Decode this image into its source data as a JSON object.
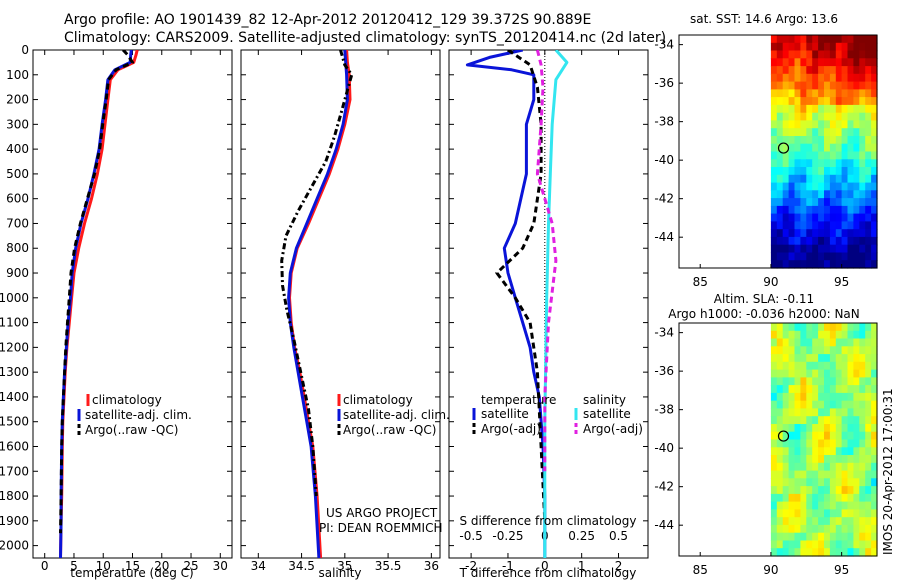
{
  "header": {
    "line1": "Argo profile: AO 1901439_82 12-Apr-2012 20120412_129 39.372S 90.889E",
    "line2": "Climatology: CARS2009. Satellite-adjusted climatology: synTS_20120414.nc (2d later)"
  },
  "credit": {
    "line1": "US ARGO PROJECT",
    "line2": "PI: DEAN ROEMMICH"
  },
  "side_label": "IMOS 20-Apr-2012 17:00:31",
  "colors": {
    "climatology": "#ff1a1a",
    "satellite": "#0a14d8",
    "argo": "#000000",
    "sal_satellite": "#33e6f0",
    "sal_argo": "#e020e0"
  },
  "chart_data": [
    {
      "type": "line",
      "name": "temperature-profile",
      "xlabel": "temperature (deg C)",
      "ylabel": "",
      "xlim": [
        -2,
        32
      ],
      "ylim": [
        2050,
        0
      ],
      "xticks": [
        "0",
        "5",
        "10",
        "15",
        "20",
        "25",
        "30"
      ],
      "xtick_values": [
        0,
        5,
        10,
        15,
        20,
        25,
        30
      ],
      "yticks": [
        "0",
        "100",
        "200",
        "300",
        "400",
        "500",
        "600",
        "700",
        "800",
        "900",
        "1000",
        "1100",
        "1200",
        "1300",
        "1400",
        "1500",
        "1600",
        "1700",
        "1800",
        "1900",
        "2000"
      ],
      "ytick_values": [
        0,
        100,
        200,
        300,
        400,
        500,
        600,
        700,
        800,
        900,
        1000,
        1100,
        1200,
        1300,
        1400,
        1500,
        1600,
        1700,
        1800,
        1900,
        2000
      ],
      "legend": [
        "climatology",
        "satellite-adj. clim.",
        "Argo(..raw -QC)"
      ],
      "series": [
        {
          "name": "climatology",
          "color": "climatology",
          "dash": "",
          "x": [
            15.8,
            15.6,
            15.2,
            12.5,
            11.2,
            10.8,
            10.3,
            9.8,
            9.0,
            8.0,
            6.8,
            5.8,
            5.0,
            4.6,
            4.2,
            3.8,
            3.5,
            3.3,
            3.1,
            3.0,
            2.9,
            2.8,
            2.7
          ],
          "y": [
            0,
            20,
            50,
            80,
            120,
            200,
            300,
            400,
            500,
            600,
            700,
            800,
            900,
            1000,
            1100,
            1200,
            1300,
            1400,
            1500,
            1600,
            1800,
            1900,
            2050
          ]
        },
        {
          "name": "satellite-adj. clim.",
          "color": "satellite",
          "dash": "",
          "x": [
            14.8,
            14.7,
            14.6,
            12.0,
            10.8,
            10.4,
            9.8,
            9.3,
            8.4,
            7.4,
            6.2,
            5.3,
            4.7,
            4.4,
            4.0,
            3.7,
            3.4,
            3.2,
            3.0,
            2.9,
            2.8,
            2.8,
            2.7
          ],
          "y": [
            0,
            20,
            50,
            80,
            120,
            200,
            300,
            400,
            500,
            600,
            700,
            800,
            900,
            1000,
            1100,
            1200,
            1300,
            1400,
            1500,
            1600,
            1800,
            1900,
            2050
          ]
        },
        {
          "name": "Argo(..raw -QC)",
          "color": "argo",
          "dash": "6,4",
          "x": [
            13.4,
            14.2,
            15.0,
            12.2,
            10.9,
            10.5,
            9.9,
            9.4,
            8.5,
            7.3,
            6.1,
            5.1,
            4.5,
            4.2,
            3.9,
            3.6,
            3.4,
            3.2,
            3.0,
            2.9,
            2.8,
            2.7
          ],
          "y": [
            0,
            20,
            50,
            80,
            120,
            200,
            300,
            400,
            500,
            600,
            700,
            800,
            900,
            1000,
            1100,
            1200,
            1300,
            1400,
            1500,
            1600,
            1800,
            1950
          ]
        }
      ]
    },
    {
      "type": "line",
      "name": "salinity-profile",
      "xlabel": "salinity",
      "ylabel": "",
      "xlim": [
        33.8,
        36.1
      ],
      "ylim": [
        2050,
        0
      ],
      "xticks": [
        "34",
        "34.5",
        "35",
        "35.5",
        "36"
      ],
      "xtick_values": [
        34,
        34.5,
        35,
        35.5,
        36
      ],
      "legend": [
        "climatology",
        "satellite-adj. clim.",
        "Argo(..raw -QC)"
      ],
      "series": [
        {
          "name": "climatology",
          "color": "climatology",
          "dash": "",
          "x": [
            35.02,
            35.03,
            35.05,
            35.06,
            35.0,
            34.92,
            34.82,
            34.7,
            34.58,
            34.45,
            34.38,
            34.36,
            34.38,
            34.42,
            34.48,
            34.53,
            34.58,
            34.63,
            34.68,
            34.72
          ],
          "y": [
            0,
            50,
            100,
            200,
            300,
            400,
            500,
            600,
            700,
            800,
            900,
            1000,
            1100,
            1200,
            1300,
            1400,
            1500,
            1600,
            1800,
            2050
          ]
        },
        {
          "name": "satellite-adj. clim.",
          "color": "satellite",
          "dash": "",
          "x": [
            35.0,
            35.01,
            35.02,
            35.03,
            34.98,
            34.9,
            34.8,
            34.68,
            34.56,
            34.44,
            34.37,
            34.35,
            34.37,
            34.41,
            34.46,
            34.51,
            34.56,
            34.61,
            34.66,
            34.7
          ],
          "y": [
            0,
            50,
            100,
            200,
            300,
            400,
            500,
            600,
            700,
            800,
            900,
            1000,
            1100,
            1200,
            1300,
            1400,
            1500,
            1600,
            1800,
            2050
          ]
        },
        {
          "name": "Argo(..raw -QC)",
          "color": "argo",
          "dash": "6,3,2,3",
          "x": [
            34.95,
            35.0,
            35.08,
            34.96,
            34.88,
            34.78,
            34.62,
            34.46,
            34.32,
            34.27,
            34.28,
            34.33,
            34.4,
            34.46,
            34.52,
            34.58,
            34.63,
            34.67
          ],
          "y": [
            0,
            60,
            100,
            250,
            350,
            450,
            550,
            650,
            750,
            850,
            950,
            1050,
            1150,
            1250,
            1350,
            1450,
            1600,
            1800
          ]
        }
      ]
    },
    {
      "type": "line",
      "name": "difference-profile",
      "xlabel": "T difference from climatology",
      "xlabel2": "S difference from climatology",
      "xlim": [
        -2.6,
        2.8
      ],
      "ylim": [
        2050,
        0
      ],
      "xticks": [
        "-2",
        "-1",
        "0",
        "1",
        "2"
      ],
      "xtick_values": [
        -2,
        -1,
        0,
        1,
        2
      ],
      "sticks": [
        "-0.5",
        "-0.25",
        "0",
        "0.25",
        "0.5"
      ],
      "stick_values": [
        -2,
        -1,
        0,
        1,
        2
      ],
      "legend_title_t": "temperature",
      "legend_title_s": "salinity",
      "legend": [
        "satellite",
        "Argo(-adj)",
        "satellite",
        "Argo(-adj)"
      ],
      "series": [
        {
          "name": "T satellite",
          "color": "satellite",
          "dash": "",
          "x": [
            -0.6,
            -1.5,
            -2.1,
            -0.9,
            -0.3,
            -0.3,
            -0.5,
            -0.5,
            -0.8,
            -1.1,
            -1.0,
            -0.8,
            -0.6,
            -0.4,
            -0.3,
            -0.15,
            -0.05,
            0.0,
            0.0
          ],
          "y": [
            0,
            30,
            60,
            80,
            100,
            200,
            300,
            500,
            700,
            800,
            900,
            1000,
            1100,
            1200,
            1300,
            1400,
            1600,
            1800,
            2050
          ]
        },
        {
          "name": "T Argo(-adj)",
          "color": "argo",
          "dash": "6,4",
          "x": [
            -1.0,
            -0.4,
            -0.2,
            -0.1,
            -0.1,
            -0.3,
            -0.6,
            -1.3,
            -0.8,
            -0.4,
            -0.2,
            -0.1,
            0.0
          ],
          "y": [
            0,
            60,
            150,
            300,
            500,
            700,
            800,
            900,
            1000,
            1100,
            1300,
            1600,
            1900
          ]
        },
        {
          "name": "S satellite",
          "color": "sal_satellite",
          "dash": "",
          "x": [
            0.3,
            0.6,
            0.3,
            0.2,
            0.15,
            0.1,
            0.05,
            0.0,
            0.0
          ],
          "y": [
            0,
            50,
            120,
            300,
            500,
            700,
            1000,
            1500,
            2050
          ]
        },
        {
          "name": "S Argo(-adj)",
          "color": "sal_argo",
          "dash": "6,4",
          "x": [
            -0.2,
            -0.1,
            -0.05,
            -0.1,
            -0.2,
            0.2,
            0.3,
            0.1,
            0.0,
            0.0
          ],
          "y": [
            0,
            60,
            150,
            300,
            500,
            700,
            850,
            1100,
            1400,
            1700
          ]
        }
      ]
    },
    {
      "type": "heatmap",
      "name": "sst-map",
      "title": "sat. SST: 14.6  Argo: 13.6",
      "xticks": [
        "85",
        "90",
        "95"
      ],
      "xtick_values": [
        85,
        90,
        95
      ],
      "yticks": [
        "-34",
        "-36",
        "-38",
        "-40",
        "-42",
        "-44"
      ],
      "ytick_values": [
        -34,
        -36,
        -38,
        -40,
        -42,
        -44
      ],
      "xlim": [
        83.5,
        97.5
      ],
      "ylim": [
        -33.5,
        -45.6
      ],
      "data_lon_start": 90,
      "marker": {
        "lon": 90.889,
        "lat": -39.372
      }
    },
    {
      "type": "heatmap",
      "name": "sla-map",
      "title": "Altim. SLA: -0.11",
      "title2": "Argo h1000: -0.036 h2000: NaN",
      "xticks": [
        "85",
        "90",
        "95"
      ],
      "xtick_values": [
        85,
        90,
        95
      ],
      "yticks": [
        "-34",
        "-36",
        "-38",
        "-40",
        "-42",
        "-44"
      ],
      "ytick_values": [
        -34,
        -36,
        -38,
        -40,
        -42,
        -44
      ],
      "xlim": [
        83.5,
        97.5
      ],
      "ylim": [
        -33.5,
        -45.6
      ],
      "data_lon_start": 90,
      "marker": {
        "lon": 90.889,
        "lat": -39.372
      }
    }
  ]
}
